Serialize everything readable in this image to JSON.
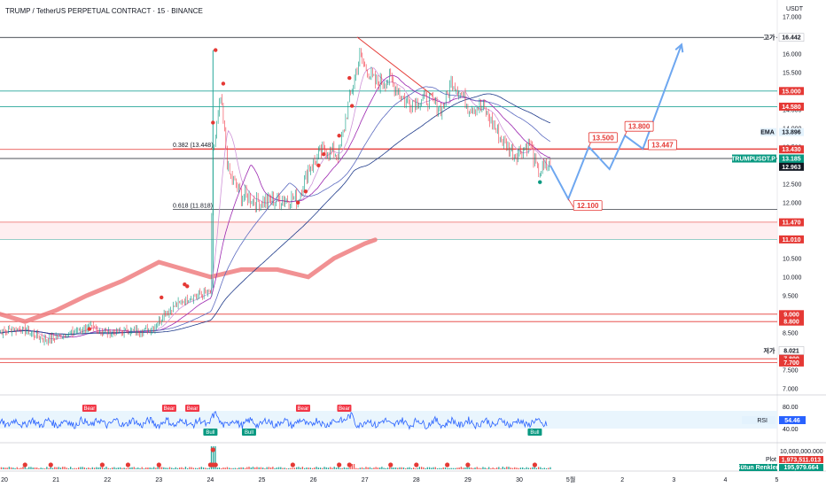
{
  "title": "TRUMP / TetherUS PERPETUAL CONTRACT · 15 · BINANCE",
  "currency": "USDT",
  "chart_data": {
    "type": "candlestick",
    "symbol": "TRUMPUSDT.P",
    "timeframe": "15",
    "x_ticks": [
      "20",
      "21",
      "22",
      "23",
      "24",
      "25",
      "26",
      "27",
      "28",
      "29",
      "30",
      "5월",
      "2",
      "3",
      "4",
      "5"
    ],
    "y_ticks": [
      "17.000",
      "16.000",
      "15.500",
      "15.000",
      "14.500",
      "14.000",
      "13.500",
      "13.000",
      "12.500",
      "12.000",
      "11.500",
      "11.000",
      "10.500",
      "10.000",
      "9.500",
      "9.000",
      "8.500",
      "8.000",
      "7.500",
      "7.000"
    ],
    "ylim": [
      6.9,
      17.2
    ],
    "price_path": [
      {
        "day": 19.8,
        "price": 8.5
      },
      {
        "day": 20.3,
        "price": 8.62
      },
      {
        "day": 20.8,
        "price": 8.3
      },
      {
        "day": 21.2,
        "price": 8.45
      },
      {
        "day": 21.6,
        "price": 8.65
      },
      {
        "day": 22.0,
        "price": 8.5
      },
      {
        "day": 22.5,
        "price": 8.55
      },
      {
        "day": 22.9,
        "price": 8.6
      },
      {
        "day": 23.1,
        "price": 9.0
      },
      {
        "day": 23.4,
        "price": 9.3
      },
      {
        "day": 23.7,
        "price": 9.5
      },
      {
        "day": 24.0,
        "price": 9.6
      },
      {
        "day": 24.05,
        "price": 13.3
      },
      {
        "day": 24.2,
        "price": 14.8
      },
      {
        "day": 24.35,
        "price": 12.8
      },
      {
        "day": 24.6,
        "price": 12.2
      },
      {
        "day": 25.0,
        "price": 12.0
      },
      {
        "day": 25.4,
        "price": 12.1
      },
      {
        "day": 25.7,
        "price": 12.1
      },
      {
        "day": 25.9,
        "price": 12.9
      },
      {
        "day": 26.2,
        "price": 13.4
      },
      {
        "day": 26.5,
        "price": 13.3
      },
      {
        "day": 26.7,
        "price": 14.8
      },
      {
        "day": 26.9,
        "price": 15.9
      },
      {
        "day": 27.2,
        "price": 15.2
      },
      {
        "day": 27.5,
        "price": 15.3
      },
      {
        "day": 27.8,
        "price": 14.7
      },
      {
        "day": 28.2,
        "price": 14.8
      },
      {
        "day": 28.5,
        "price": 14.5
      },
      {
        "day": 28.7,
        "price": 15.3
      },
      {
        "day": 29.0,
        "price": 14.6
      },
      {
        "day": 29.3,
        "price": 14.55
      },
      {
        "day": 29.6,
        "price": 13.8
      },
      {
        "day": 29.9,
        "price": 13.3
      },
      {
        "day": 30.2,
        "price": 13.6
      },
      {
        "day": 30.35,
        "price": 12.8
      },
      {
        "day": 30.6,
        "price": 13.0
      }
    ],
    "projection": [
      {
        "day": 30.6,
        "price": 13.0
      },
      {
        "day": 30.95,
        "price": 12.1
      },
      {
        "day": 31.35,
        "price": 13.5
      },
      {
        "day": 31.75,
        "price": 12.9
      },
      {
        "day": 32.05,
        "price": 13.8
      },
      {
        "day": 32.4,
        "price": 13.447
      },
      {
        "day": 33.15,
        "price": 16.25
      }
    ],
    "horizontal_levels": [
      {
        "price": 16.442,
        "tag": "16.442",
        "color": "#ffffff",
        "text": "#131722",
        "line": "#131722",
        "side": "고가"
      },
      {
        "price": 15.0,
        "tag": "15.000",
        "color": "#e53935",
        "text": "#ffffff",
        "line": "#26a69a"
      },
      {
        "price": 14.58,
        "tag": "14.580",
        "color": "#e53935",
        "text": "#ffffff",
        "line": "#26a69a"
      },
      {
        "price": 13.896,
        "tag": "13.896",
        "color": "#e3f2fd",
        "text": "#131722",
        "line": "",
        "side": "EMA"
      },
      {
        "price": 13.43,
        "tag": "13.430",
        "color": "#e53935",
        "text": "#ffffff",
        "line": "#e53935"
      },
      {
        "price": 13.185,
        "tag": "13.185",
        "color": "#089981",
        "text": "#ffffff",
        "line": "#131722",
        "side": "TRUMPUSDT.P",
        "sub": "06:42"
      },
      {
        "price": 12.963,
        "tag": "12.963",
        "color": "#131722",
        "text": "#ffffff",
        "line": ""
      },
      {
        "price": 11.47,
        "tag": "11.470",
        "color": "#e53935",
        "text": "#ffffff",
        "line": "#e53935"
      },
      {
        "price": 11.01,
        "tag": "11.010",
        "color": "#e53935",
        "text": "#ffffff",
        "line": "#26a69a"
      },
      {
        "price": 9.0,
        "tag": "9.000",
        "color": "#e53935",
        "text": "#ffffff",
        "line": "#e53935"
      },
      {
        "price": 8.8,
        "tag": "8.800",
        "color": "#e53935",
        "text": "#ffffff",
        "line": "#e53935"
      },
      {
        "price": 8.021,
        "tag": "8.021",
        "color": "#ffffff",
        "text": "#131722",
        "line": "",
        "side": "저가"
      },
      {
        "price": 7.8,
        "tag": "7.800",
        "color": "#e53935",
        "text": "#ffffff",
        "line": "#e53935"
      },
      {
        "price": 7.7,
        "tag": "7.700",
        "color": "#e53935",
        "text": "#ffffff",
        "line": "#e53935"
      }
    ],
    "fib_levels": [
      {
        "label": "0.382 (13.448)",
        "price": 13.448
      },
      {
        "label": "0.618 (11.818)",
        "price": 11.818
      }
    ],
    "callouts": [
      {
        "label": "13.500",
        "day": 31.35,
        "price": 13.5
      },
      {
        "label": "13.800",
        "day": 32.05,
        "price": 13.8
      },
      {
        "label": "13.447",
        "day": 32.4,
        "price": 13.447
      },
      {
        "label": "12.100",
        "day": 30.95,
        "price": 12.1
      }
    ],
    "rsi": {
      "label": "RSI",
      "value": "54.46",
      "ticks": [
        "80.00",
        "40.00"
      ],
      "signals": [
        {
          "label": "Bear",
          "day": 21.65
        },
        {
          "label": "Bear",
          "day": 23.2
        },
        {
          "label": "Bear",
          "day": 23.65
        },
        {
          "label": "Bull",
          "day": 24.0
        },
        {
          "label": "Bull",
          "day": 24.75
        },
        {
          "label": "Bear",
          "day": 25.8
        },
        {
          "label": "Bear",
          "day": 26.6
        },
        {
          "label": "Bull",
          "day": 30.3
        }
      ]
    },
    "volume": {
      "tick": "10,000,000.000",
      "plot_label": "Plot",
      "plot_value": "1,973,511.013",
      "volume_label": "Sütun Renkleri",
      "volume_value": "195,979.664"
    }
  }
}
